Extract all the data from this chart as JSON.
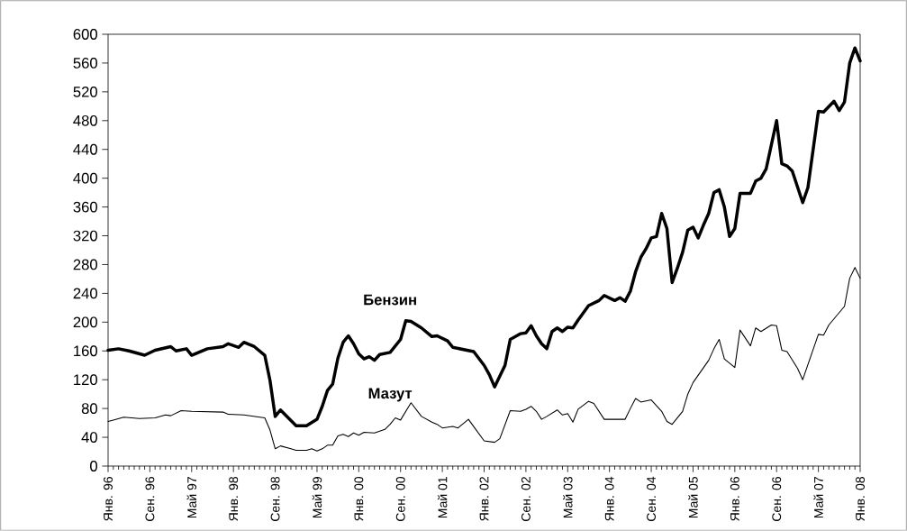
{
  "chart_data": {
    "type": "line",
    "xlim": [
      "1996-01",
      "2008-01"
    ],
    "ylim": [
      0,
      600
    ],
    "yticks": [
      0,
      40,
      80,
      120,
      160,
      200,
      240,
      280,
      320,
      360,
      400,
      440,
      480,
      520,
      560,
      600
    ],
    "xticks": [
      {
        "value": "1996-01",
        "label": "Янв. 96"
      },
      {
        "value": "1996-09",
        "label": "Сен. 96"
      },
      {
        "value": "1997-05",
        "label": "Май 97"
      },
      {
        "value": "1998-01",
        "label": "Янв. 98"
      },
      {
        "value": "1998-09",
        "label": "Сен. 98"
      },
      {
        "value": "1999-05",
        "label": "Май 99"
      },
      {
        "value": "2000-01",
        "label": "Янв. 00"
      },
      {
        "value": "2000-09",
        "label": "Сен. 00"
      },
      {
        "value": "2001-05",
        "label": "Май 01"
      },
      {
        "value": "2002-01",
        "label": "Янв. 02"
      },
      {
        "value": "2002-09",
        "label": "Сен. 02"
      },
      {
        "value": "2003-05",
        "label": "Май 03"
      },
      {
        "value": "2004-01",
        "label": "Янв. 04"
      },
      {
        "value": "2004-09",
        "label": "Сен. 04"
      },
      {
        "value": "2005-05",
        "label": "Май 05"
      },
      {
        "value": "2006-01",
        "label": "Янв. 06"
      },
      {
        "value": "2006-09",
        "label": "Сен. 06"
      },
      {
        "value": "2007-05",
        "label": "Май 07"
      },
      {
        "value": "2008-01",
        "label": "Янв. 08"
      }
    ],
    "grid": false,
    "legend": false,
    "marker": "none",
    "line_style": "solid",
    "series": [
      {
        "name": "Бензин",
        "color": "#000000",
        "x": [
          "1996-01",
          "1996-03",
          "1996-05",
          "1996-08",
          "1996-10",
          "1997-01",
          "1997-02",
          "1997-04",
          "1997-05",
          "1997-08",
          "1997-11",
          "1997-12",
          "1998-02",
          "1998-03",
          "1998-05",
          "1998-07",
          "1998-08",
          "1998-09",
          "1998-10",
          "1999-01",
          "1999-03",
          "1999-05",
          "1999-06",
          "1999-07",
          "1999-08",
          "1999-09",
          "1999-10",
          "1999-11",
          "1999-12",
          "2000-01",
          "2000-02",
          "2000-03",
          "2000-04",
          "2000-05",
          "2000-07",
          "2000-09",
          "2000-10",
          "2000-11",
          "2001-01",
          "2001-03",
          "2001-04",
          "2001-06",
          "2001-07",
          "2001-09",
          "2001-11",
          "2002-01",
          "2002-02",
          "2002-03",
          "2002-05",
          "2002-06",
          "2002-08",
          "2002-09",
          "2002-10",
          "2002-11",
          "2002-12",
          "2003-01",
          "2003-02",
          "2003-03",
          "2003-04",
          "2003-05",
          "2003-06",
          "2003-07",
          "2003-09",
          "2003-11",
          "2003-12",
          "2004-02",
          "2004-03",
          "2004-04",
          "2004-05",
          "2004-06",
          "2004-07",
          "2004-08",
          "2004-09",
          "2004-10",
          "2004-11",
          "2004-12",
          "2005-01",
          "2005-02",
          "2005-03",
          "2005-04",
          "2005-05",
          "2005-06",
          "2005-07",
          "2005-08",
          "2005-09",
          "2005-10",
          "2005-11",
          "2005-12",
          "2006-01",
          "2006-02",
          "2006-04",
          "2006-05",
          "2006-06",
          "2006-07",
          "2006-09",
          "2006-10",
          "2006-11",
          "2006-12",
          "2007-02",
          "2007-03",
          "2007-05",
          "2007-06",
          "2007-08",
          "2007-09",
          "2007-10",
          "2007-11",
          "2007-12",
          "2008-01"
        ],
        "values": [
          161,
          163,
          160,
          154,
          161,
          166,
          160,
          163,
          154,
          163,
          166,
          170,
          165,
          172,
          166,
          154,
          119,
          69,
          78,
          56,
          56,
          65,
          83,
          105,
          114,
          150,
          172,
          181,
          170,
          156,
          149,
          152,
          147,
          155,
          158,
          176,
          202,
          201,
          192,
          180,
          181,
          174,
          165,
          162,
          159,
          140,
          127,
          110,
          140,
          176,
          184,
          185,
          195,
          181,
          170,
          163,
          187,
          192,
          187,
          193,
          192,
          203,
          223,
          230,
          237,
          230,
          234,
          229,
          243,
          270,
          290,
          302,
          317,
          319,
          351,
          330,
          255,
          275,
          297,
          328,
          332,
          317,
          335,
          351,
          380,
          384,
          360,
          319,
          330,
          379,
          379,
          396,
          400,
          413,
          480,
          420,
          417,
          410,
          366,
          387,
          493,
          492,
          507,
          494,
          506,
          560,
          581,
          563
        ]
      },
      {
        "name": "Мазут",
        "color": "#000000",
        "x": [
          "1996-01",
          "1996-02",
          "1996-04",
          "1996-07",
          "1996-10",
          "1996-12",
          "1997-01",
          "1997-03",
          "1997-05",
          "1997-11",
          "1997-12",
          "1998-03",
          "1998-07",
          "1998-08",
          "1998-09",
          "1998-10",
          "1998-12",
          "1999-01",
          "1999-03",
          "1999-04",
          "1999-05",
          "1999-06",
          "1999-07",
          "1999-08",
          "1999-09",
          "1999-10",
          "1999-11",
          "1999-12",
          "2000-01",
          "2000-02",
          "2000-04",
          "2000-06",
          "2000-07",
          "2000-08",
          "2000-09",
          "2000-11",
          "2001-01",
          "2001-03",
          "2001-04",
          "2001-05",
          "2001-07",
          "2001-08",
          "2001-10",
          "2001-11",
          "2002-01",
          "2002-03",
          "2002-04",
          "2002-06",
          "2002-08",
          "2002-09",
          "2002-10",
          "2002-11",
          "2002-12",
          "2003-01",
          "2003-03",
          "2003-04",
          "2003-05",
          "2003-06",
          "2003-07",
          "2003-09",
          "2003-10",
          "2003-12",
          "2004-04",
          "2004-05",
          "2004-06",
          "2004-07",
          "2004-09",
          "2004-11",
          "2004-12",
          "2005-01",
          "2005-03",
          "2005-04",
          "2005-05",
          "2005-08",
          "2005-09",
          "2005-10",
          "2005-11",
          "2006-01",
          "2006-02",
          "2006-04",
          "2006-05",
          "2006-06",
          "2006-08",
          "2006-09",
          "2006-10",
          "2006-11",
          "2007-01",
          "2007-02",
          "2007-05",
          "2007-06",
          "2007-07",
          "2007-10",
          "2007-11",
          "2007-12",
          "2008-01"
        ],
        "values": [
          62,
          64,
          68,
          66,
          67,
          71,
          70,
          77,
          76,
          75,
          72,
          71,
          67,
          50,
          24,
          28,
          24,
          22,
          22,
          24,
          21,
          24,
          29,
          29,
          42,
          44,
          41,
          46,
          43,
          47,
          46,
          51,
          58,
          67,
          64,
          88,
          69,
          61,
          58,
          53,
          55,
          53,
          65,
          55,
          35,
          33,
          38,
          77,
          76,
          79,
          83,
          76,
          65,
          69,
          78,
          71,
          73,
          61,
          79,
          90,
          87,
          65,
          65,
          80,
          94,
          89,
          92,
          76,
          62,
          58,
          76,
          100,
          116,
          147,
          163,
          176,
          149,
          137,
          189,
          167,
          192,
          187,
          196,
          195,
          161,
          159,
          136,
          120,
          183,
          182,
          196,
          222,
          261,
          276,
          261
        ]
      }
    ]
  }
}
